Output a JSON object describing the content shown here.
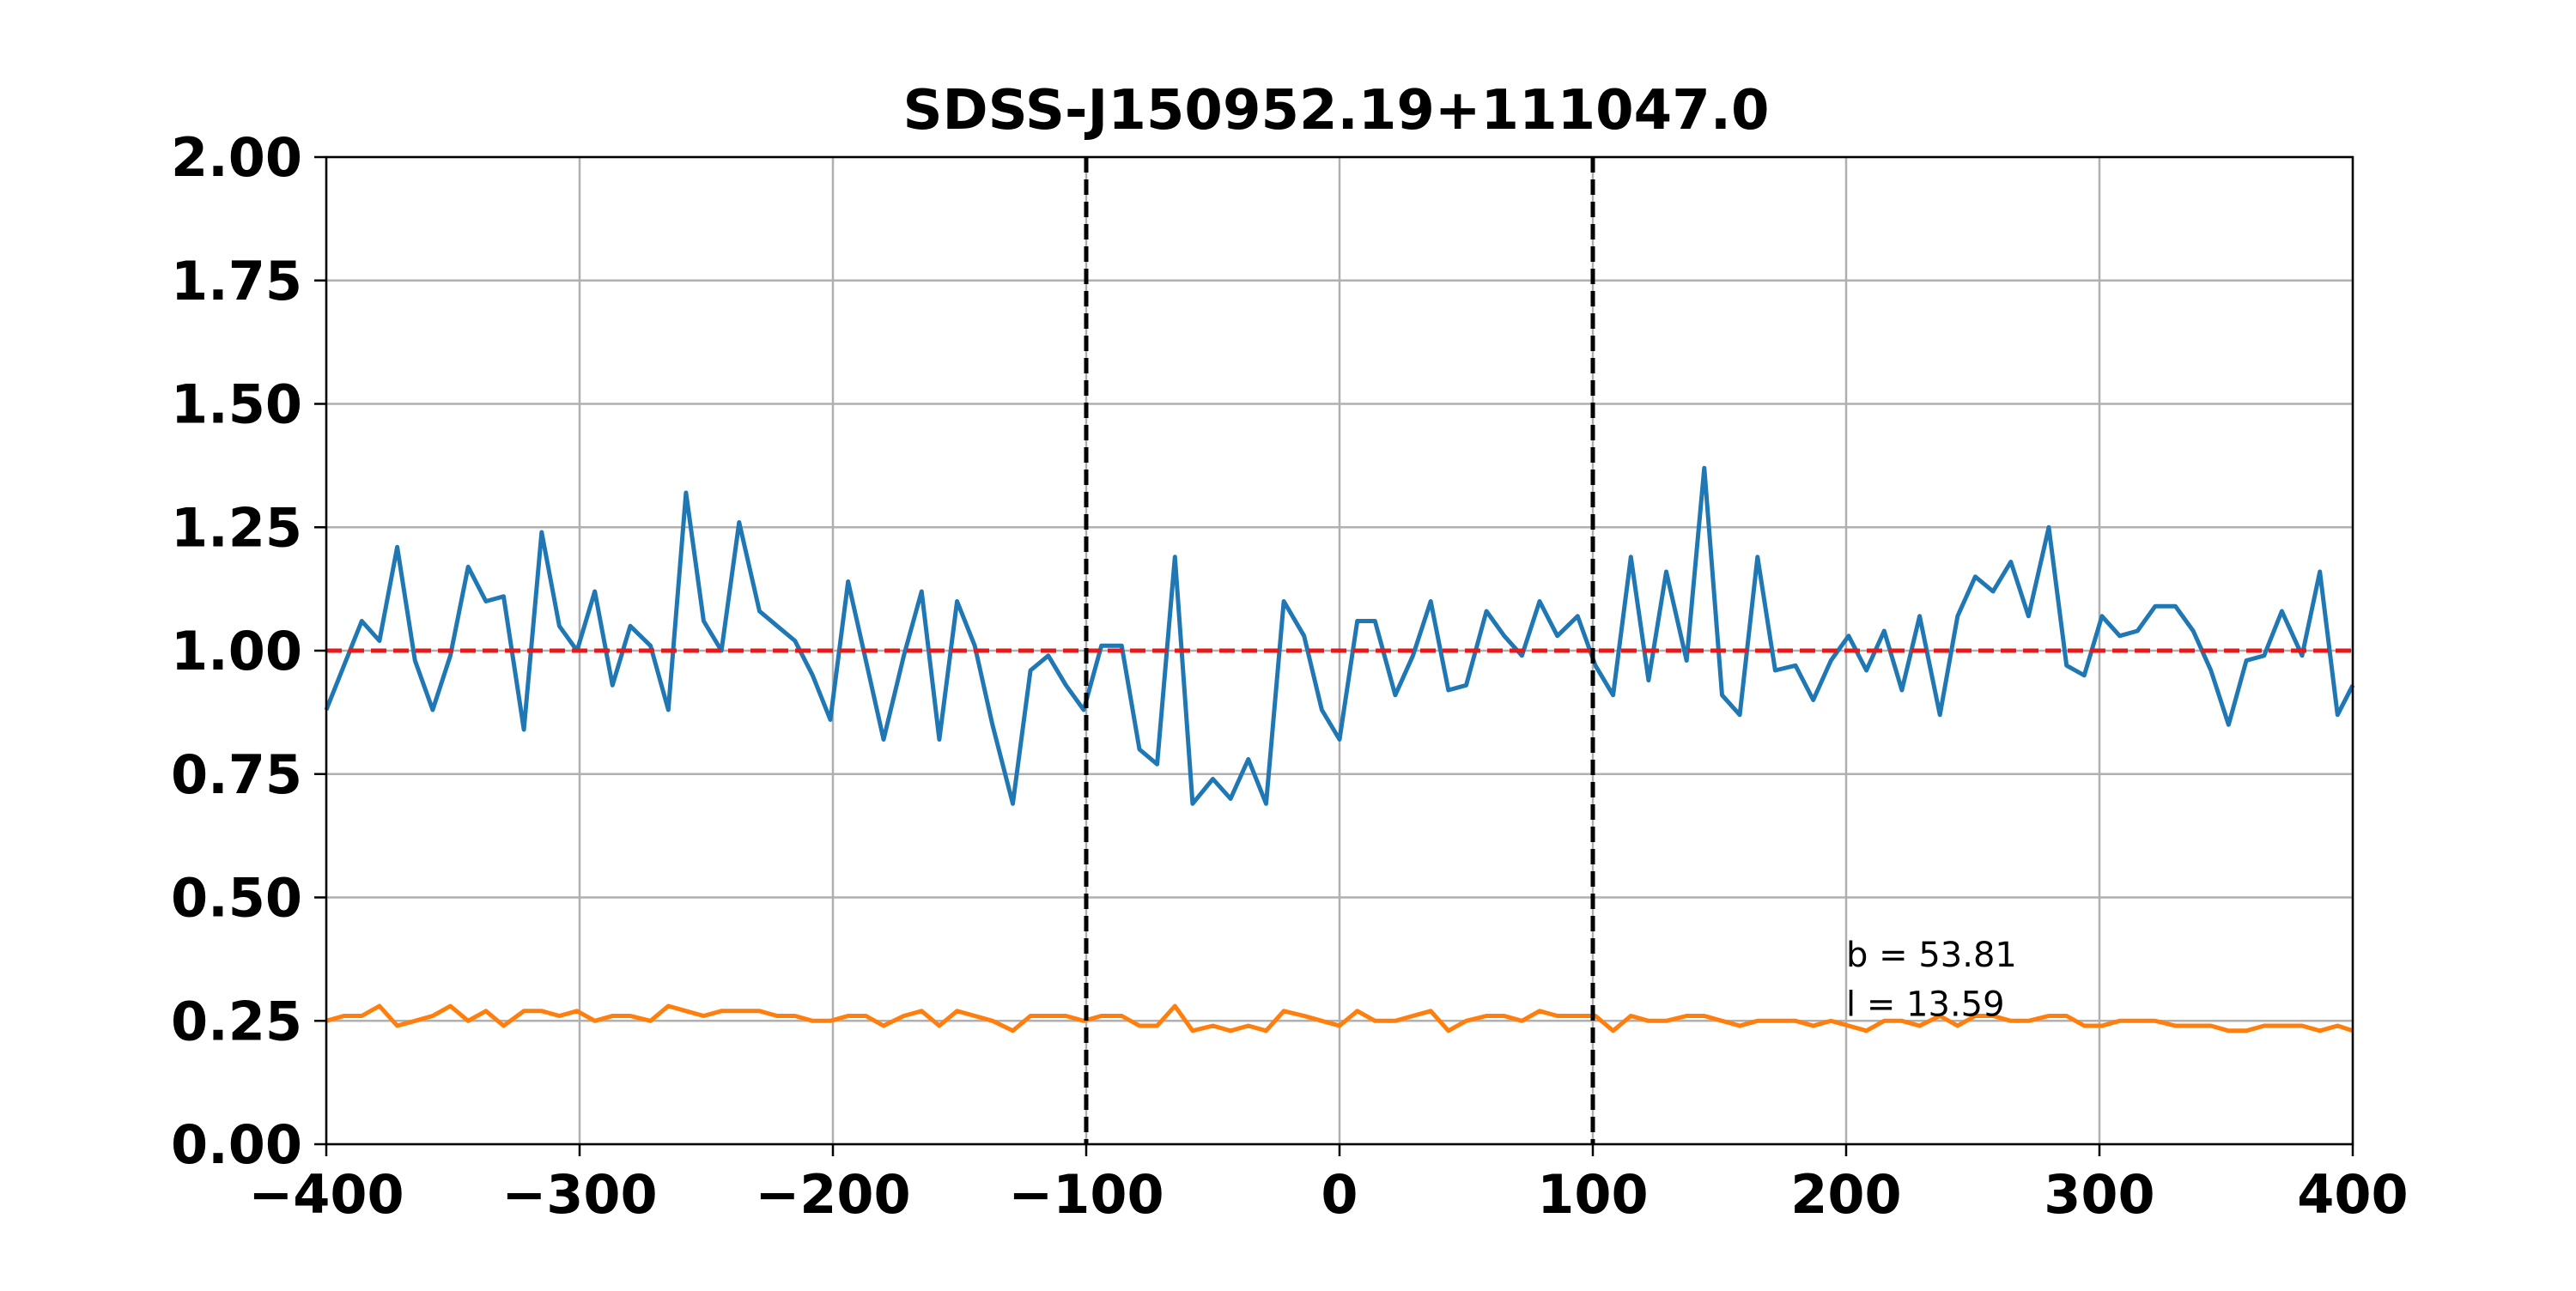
{
  "chart_data": {
    "type": "line",
    "title": "SDSS-J150952.19+111047.0",
    "xlim": [
      -400,
      400
    ],
    "ylim": [
      0,
      2
    ],
    "x_ticks": [
      -400,
      -300,
      -200,
      -100,
      0,
      100,
      200,
      300,
      400
    ],
    "x_tick_labels": [
      "−400",
      "−300",
      "−200",
      "−100",
      "0",
      "100",
      "200",
      "300",
      "400"
    ],
    "y_ticks": [
      0,
      0.25,
      0.5,
      0.75,
      1.0,
      1.25,
      1.5,
      1.75,
      2.0
    ],
    "y_tick_labels": [
      "0.00",
      "0.25",
      "0.50",
      "0.75",
      "1.00",
      "1.25",
      "1.50",
      "1.75",
      "2.00"
    ],
    "grid": true,
    "reference_lines": [
      {
        "orientation": "horizontal",
        "value": 1.0,
        "color": "#e8191a",
        "style": "dashed"
      },
      {
        "orientation": "vertical",
        "value": -100,
        "color": "#000000",
        "style": "dashed"
      },
      {
        "orientation": "vertical",
        "value": 100,
        "color": "#000000",
        "style": "dashed"
      }
    ],
    "annotations": [
      {
        "text": "b = 53.81",
        "x": 200,
        "y": 0.36
      },
      {
        "text": "l = 13.59",
        "x": 200,
        "y": 0.26
      }
    ],
    "series": [
      {
        "color": "#1f77b4",
        "x": [
          -400,
          -393,
          -386,
          -379,
          -372,
          -365,
          -358,
          -351,
          -344,
          -337,
          -330,
          -322,
          -315,
          -308,
          -301,
          -294,
          -287,
          -280,
          -272,
          -265,
          -258,
          -251,
          -244,
          -237,
          -229,
          -222,
          -215,
          -208,
          -201,
          -194,
          -187,
          -180,
          -172,
          -165,
          -158,
          -151,
          -144,
          -137,
          -129,
          -122,
          -115,
          -108,
          -101,
          -94,
          -86,
          -79,
          -72,
          -65,
          -58,
          -50,
          -43,
          -36,
          -29,
          -22,
          -14,
          -7,
          0,
          7,
          14,
          22,
          29,
          36,
          43,
          50,
          58,
          65,
          72,
          79,
          86,
          94,
          101,
          108,
          115,
          122,
          129,
          137,
          144,
          151,
          158,
          165,
          172,
          180,
          187,
          194,
          201,
          208,
          215,
          222,
          229,
          237,
          244,
          251,
          258,
          265,
          272,
          280,
          287,
          294,
          301,
          308,
          315,
          322,
          330,
          337,
          344,
          351,
          358,
          365,
          372,
          380,
          387,
          394,
          400
        ],
        "y": [
          0.88,
          0.97,
          1.06,
          1.02,
          1.21,
          0.98,
          0.88,
          0.99,
          1.17,
          1.1,
          1.11,
          0.84,
          1.24,
          1.05,
          1.0,
          1.12,
          0.93,
          1.05,
          1.01,
          0.88,
          1.32,
          1.06,
          1.0,
          1.26,
          1.08,
          1.05,
          1.02,
          0.95,
          0.86,
          1.14,
          0.98,
          0.82,
          0.99,
          1.12,
          0.82,
          1.1,
          1.01,
          0.85,
          0.69,
          0.96,
          0.99,
          0.93,
          0.88,
          1.01,
          1.01,
          0.8,
          0.77,
          1.19,
          0.69,
          0.74,
          0.7,
          0.78,
          0.69,
          1.1,
          1.03,
          0.88,
          0.82,
          1.06,
          1.06,
          0.91,
          0.99,
          1.1,
          0.92,
          0.93,
          1.08,
          1.03,
          0.99,
          1.1,
          1.03,
          1.07,
          0.97,
          0.91,
          1.19,
          0.94,
          1.16,
          0.98,
          1.37,
          0.91,
          0.87,
          1.19,
          0.96,
          0.97,
          0.9,
          0.98,
          1.03,
          0.96,
          1.04,
          0.92,
          1.07,
          0.87,
          1.07,
          1.15,
          1.12,
          1.18,
          1.07,
          1.25,
          0.97,
          0.95,
          1.07,
          1.03,
          1.04,
          1.09,
          1.09,
          1.04,
          0.96,
          0.85,
          0.98,
          0.99,
          1.08,
          0.99,
          1.16,
          0.87,
          0.93
        ]
      },
      {
        "color": "#ff7f0e",
        "x": [
          -400,
          -393,
          -386,
          -379,
          -372,
          -365,
          -358,
          -351,
          -344,
          -337,
          -330,
          -322,
          -315,
          -308,
          -301,
          -294,
          -287,
          -280,
          -272,
          -265,
          -258,
          -251,
          -244,
          -237,
          -229,
          -222,
          -215,
          -208,
          -201,
          -194,
          -187,
          -180,
          -172,
          -165,
          -158,
          -151,
          -144,
          -137,
          -129,
          -122,
          -115,
          -108,
          -101,
          -94,
          -86,
          -79,
          -72,
          -65,
          -58,
          -50,
          -43,
          -36,
          -29,
          -22,
          -14,
          -7,
          0,
          7,
          14,
          22,
          29,
          36,
          43,
          50,
          58,
          65,
          72,
          79,
          86,
          94,
          101,
          108,
          115,
          122,
          129,
          137,
          144,
          151,
          158,
          165,
          172,
          180,
          187,
          194,
          201,
          208,
          215,
          222,
          229,
          237,
          244,
          251,
          258,
          265,
          272,
          280,
          287,
          294,
          301,
          308,
          315,
          322,
          330,
          337,
          344,
          351,
          358,
          365,
          372,
          380,
          387,
          394,
          400
        ],
        "y": [
          0.25,
          0.26,
          0.26,
          0.28,
          0.24,
          0.25,
          0.26,
          0.28,
          0.25,
          0.27,
          0.24,
          0.27,
          0.27,
          0.26,
          0.27,
          0.25,
          0.26,
          0.26,
          0.25,
          0.28,
          0.27,
          0.26,
          0.27,
          0.27,
          0.27,
          0.26,
          0.26,
          0.25,
          0.25,
          0.26,
          0.26,
          0.24,
          0.26,
          0.27,
          0.24,
          0.27,
          0.26,
          0.25,
          0.23,
          0.26,
          0.26,
          0.26,
          0.25,
          0.26,
          0.26,
          0.24,
          0.24,
          0.28,
          0.23,
          0.24,
          0.23,
          0.24,
          0.23,
          0.27,
          0.26,
          0.25,
          0.24,
          0.27,
          0.25,
          0.25,
          0.26,
          0.27,
          0.23,
          0.25,
          0.26,
          0.26,
          0.25,
          0.27,
          0.26,
          0.26,
          0.26,
          0.23,
          0.26,
          0.25,
          0.25,
          0.26,
          0.26,
          0.25,
          0.24,
          0.25,
          0.25,
          0.25,
          0.24,
          0.25,
          0.24,
          0.23,
          0.25,
          0.25,
          0.24,
          0.26,
          0.24,
          0.26,
          0.26,
          0.25,
          0.25,
          0.26,
          0.26,
          0.24,
          0.24,
          0.25,
          0.25,
          0.25,
          0.24,
          0.24,
          0.24,
          0.23,
          0.23,
          0.24,
          0.24,
          0.24,
          0.23,
          0.24,
          0.23
        ]
      }
    ]
  }
}
